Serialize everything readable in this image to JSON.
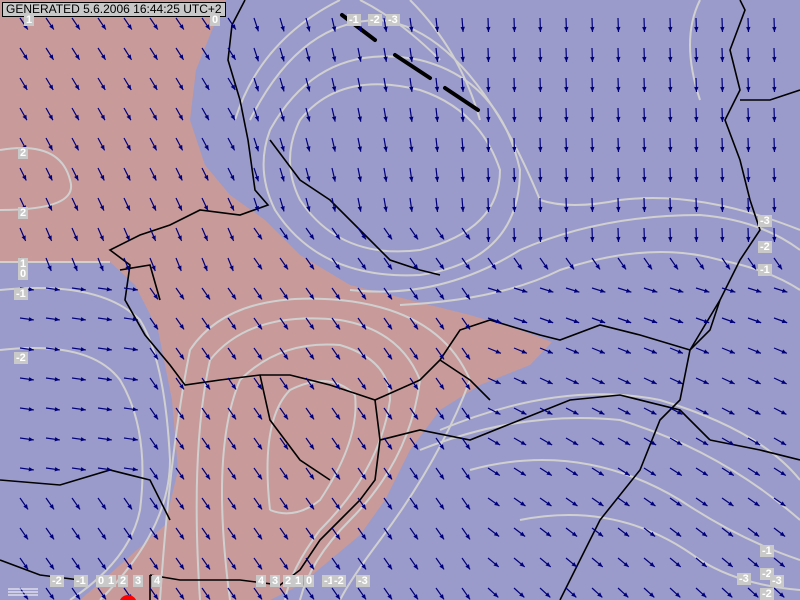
{
  "header": {
    "generated": "GENERATED 5.6.2006 16:44:25 UTC+2"
  },
  "colors": {
    "positive_area": "#c89a9a",
    "negative_area": "#9a9bcb",
    "arrows": "#00007a",
    "contours": "#d0d0d0",
    "borders": "#000000",
    "marker": "#ff0000"
  },
  "contour_labels": {
    "top": [
      "1",
      "0",
      "-1",
      "-2",
      "-3"
    ],
    "left": [
      "2",
      "2",
      "1",
      "0",
      "-1",
      "-2"
    ],
    "right": [
      "-3",
      "-2",
      "-1",
      "-1",
      "-2",
      "-3",
      "-2",
      "-3"
    ],
    "bottom": [
      "-2",
      "-1",
      "0",
      "1",
      "2",
      "3",
      "4",
      "4",
      "3",
      "2",
      "1",
      "0",
      "-1",
      "-2",
      "-3"
    ]
  },
  "icons": {
    "wind": "wind-arrow-icon",
    "marker": "location-dot-icon",
    "legend": "legend-icon"
  }
}
